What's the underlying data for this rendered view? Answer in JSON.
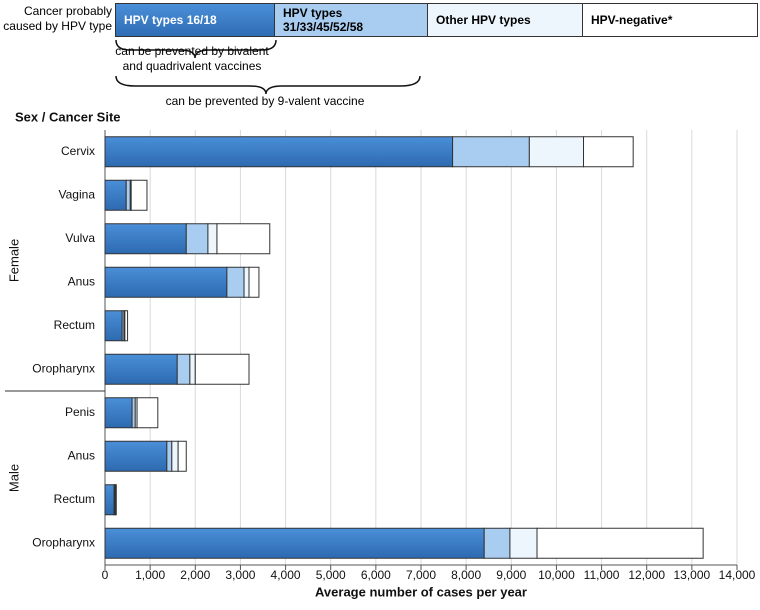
{
  "chart_data": {
    "type": "stacked-bar-horizontal",
    "legend_title": "Cancer probably caused by HPV type",
    "annotations": [
      "can be prevented by bivalent and quadrivalent vaccines",
      "can be prevented by 9-valent vaccine"
    ],
    "y_axis_title": "Sex / Cancer Site",
    "x_axis_title": "Average number of cases per year",
    "groups": [
      {
        "label": "Female",
        "categories": [
          "Cervix",
          "Vagina",
          "Vulva",
          "Anus",
          "Rectum",
          "Oropharynx"
        ]
      },
      {
        "label": "Male",
        "categories": [
          "Penis",
          "Anus",
          "Rectum",
          "Oropharynx"
        ]
      }
    ],
    "series": [
      {
        "name": "HPV types 16/18",
        "color": "#3b7fcb",
        "values": [
          7700,
          470,
          1800,
          2700,
          380,
          1600,
          600,
          1370,
          200,
          8400
        ]
      },
      {
        "name": "HPV types 31/33/45/52/58",
        "color": "#a9cdf0",
        "values": [
          1700,
          90,
          480,
          380,
          40,
          280,
          70,
          110,
          20,
          570
        ]
      },
      {
        "name": "Other HPV types",
        "color": "#eef6fd",
        "values": [
          1200,
          20,
          200,
          110,
          20,
          120,
          40,
          140,
          10,
          600
        ]
      },
      {
        "name": "HPV-negative*",
        "color": "#ffffff",
        "values": [
          1100,
          350,
          1170,
          220,
          60,
          1190,
          460,
          180,
          20,
          3680
        ]
      }
    ],
    "xlim": [
      0,
      14000
    ],
    "xticks": [
      0,
      {
        "value": 1000,
        "label": "1,000"
      },
      {
        "value": 2000,
        "label": "2,000"
      },
      {
        "value": 3000,
        "label": "3,000"
      },
      {
        "value": 4000,
        "label": "4,000"
      },
      {
        "value": 5000,
        "label": "5,000"
      },
      {
        "value": 6000,
        "label": "6,000"
      },
      {
        "value": 7000,
        "label": "7,000"
      },
      {
        "value": 8000,
        "label": "8,000"
      },
      {
        "value": 9000,
        "label": "9,000"
      },
      {
        "value": 10000,
        "label": "10,000"
      },
      {
        "value": 11000,
        "label": "11,000"
      },
      {
        "value": 12000,
        "label": "12,000"
      },
      {
        "value": 13000,
        "label": "13,000"
      },
      {
        "value": 14000,
        "label": "14,000"
      }
    ],
    "grid": true
  }
}
